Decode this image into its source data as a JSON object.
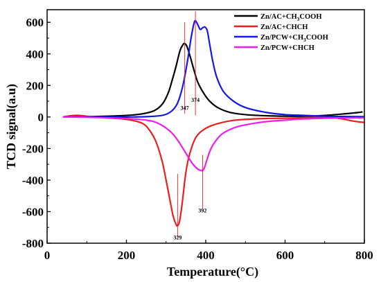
{
  "chart_data": {
    "type": "line",
    "xlabel": "Temperature(°C)",
    "ylabel": "TCD signal(a.u)",
    "xlim": [
      0,
      800
    ],
    "ylim": [
      -800,
      680
    ],
    "xticks": [
      0,
      200,
      400,
      600,
      800
    ],
    "yticks": [
      -800,
      -600,
      -400,
      -200,
      0,
      200,
      400,
      600
    ],
    "xtick_labels": [
      "0",
      "200",
      "400",
      "600",
      "800"
    ],
    "ytick_labels": [
      "-800",
      "-600",
      "-400",
      "-200",
      "0",
      "200",
      "400",
      "600"
    ],
    "grid": false,
    "legend_position": "top-right",
    "series": [
      {
        "name": "Zn/AC+CH3COOH",
        "name_main": "Zn/AC+CH",
        "name_sub": "3",
        "name_tail": "COOH",
        "color": "#000000",
        "x": [
          40,
          100,
          150,
          200,
          240,
          270,
          290,
          305,
          315,
          325,
          335,
          343,
          347,
          352,
          360,
          370,
          380,
          395,
          410,
          430,
          460,
          500,
          550,
          600,
          650,
          700,
          750,
          790,
          795
        ],
        "y": [
          0,
          2,
          5,
          10,
          20,
          40,
          80,
          150,
          230,
          320,
          420,
          460,
          465,
          450,
          390,
          300,
          220,
          150,
          100,
          60,
          30,
          15,
          8,
          5,
          5,
          10,
          20,
          30,
          35
        ]
      },
      {
        "name": "Zn/AC+CHCH",
        "name_main": "Zn/AC+CHCH",
        "name_sub": "",
        "name_tail": "",
        "color": "#ee1c1c",
        "x": [
          40,
          60,
          80,
          100,
          150,
          200,
          240,
          260,
          275,
          290,
          300,
          310,
          318,
          325,
          329,
          334,
          340,
          350,
          360,
          375,
          395,
          420,
          460,
          500,
          550,
          600,
          650,
          700,
          740,
          770,
          800
        ],
        "y": [
          0,
          8,
          10,
          5,
          -5,
          -15,
          -40,
          -90,
          -160,
          -280,
          -400,
          -530,
          -630,
          -680,
          -690,
          -660,
          -560,
          -350,
          -230,
          -130,
          -80,
          -50,
          -25,
          -15,
          -10,
          -8,
          -5,
          -2,
          -10,
          -25,
          -35
        ]
      },
      {
        "name": "Zn/PCW+CH3COOH",
        "name_main": "Zn/PCW+CH",
        "name_sub": "3",
        "name_tail": "COOH",
        "color": "#1515ee",
        "x": [
          40,
          100,
          150,
          200,
          250,
          290,
          310,
          325,
          335,
          345,
          355,
          363,
          370,
          374,
          380,
          386,
          392,
          398,
          404,
          410,
          418,
          428,
          445,
          470,
          500,
          550,
          600,
          650,
          700,
          750,
          800
        ],
        "y": [
          0,
          0,
          0,
          0,
          2,
          10,
          30,
          70,
          130,
          230,
          370,
          500,
          590,
          610,
          585,
          555,
          565,
          570,
          545,
          460,
          350,
          250,
          160,
          100,
          60,
          30,
          15,
          10,
          5,
          3,
          2
        ]
      },
      {
        "name": "Zn/PCW+CHCH",
        "name_main": "Zn/PCW+CHCH",
        "name_sub": "",
        "name_tail": "",
        "color": "#ee1cee",
        "x": [
          40,
          100,
          150,
          200,
          250,
          280,
          310,
          330,
          350,
          365,
          375,
          383,
          388,
          392,
          397,
          402,
          410,
          420,
          440,
          470,
          500,
          550,
          600,
          650,
          700,
          750,
          800
        ],
        "y": [
          0,
          -2,
          -5,
          -10,
          -20,
          -40,
          -90,
          -150,
          -230,
          -290,
          -320,
          -335,
          -338,
          -340,
          -320,
          -280,
          -220,
          -170,
          -110,
          -70,
          -50,
          -30,
          -20,
          -12,
          -8,
          -5,
          -5
        ]
      }
    ],
    "annotations": [
      {
        "label": "347",
        "x": 347,
        "line_from": 20,
        "line_to": 600,
        "text_y": 45
      },
      {
        "label": "374",
        "x": 374,
        "line_from": 10,
        "line_to": 670,
        "text_y": 95
      },
      {
        "label": "329",
        "x": 329,
        "line_from": -360,
        "line_to": -760,
        "text_y": -775
      },
      {
        "label": "392",
        "x": 392,
        "line_from": -240,
        "line_to": -580,
        "text_y": -605
      }
    ]
  }
}
